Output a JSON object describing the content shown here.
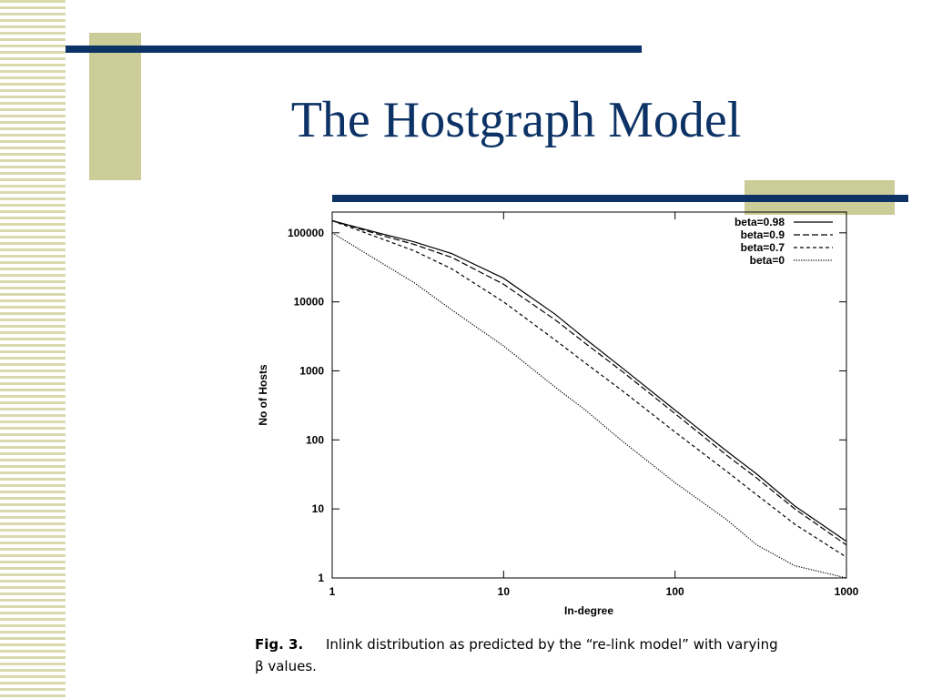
{
  "slide": {
    "title": "The Hostgraph Model",
    "caption_label": "Fig. 3.",
    "caption_text": "Inlink distribution as predicted by the “re-link model” with varying",
    "caption_text2": "β values."
  },
  "chart_data": {
    "type": "line",
    "x_label": "In-degree",
    "y_label": "No of Hosts",
    "xscale": "log",
    "yscale": "log",
    "x": [
      1,
      2,
      3,
      5,
      10,
      20,
      30,
      50,
      100,
      200,
      300,
      500,
      1000
    ],
    "series": [
      {
        "name": "beta=0.98",
        "color": "#000000",
        "style": "solid",
        "values": [
          150000,
          95000,
          74000,
          50000,
          22000,
          6600,
          2900,
          1070,
          270,
          69,
          32,
          11,
          3.4
        ]
      },
      {
        "name": "beta=0.9",
        "color": "#000000",
        "style": "dashed",
        "values": [
          150000,
          90000,
          68000,
          44000,
          18000,
          5500,
          2500,
          950,
          240,
          60,
          28,
          10,
          3
        ]
      },
      {
        "name": "beta=0.7",
        "color": "#000000",
        "style": "short-dashed",
        "values": [
          150000,
          80000,
          55000,
          30000,
          10000,
          2800,
          1300,
          500,
          130,
          35,
          16,
          6,
          2
        ]
      },
      {
        "name": "beta=0",
        "color": "#000000",
        "style": "dotted",
        "values": [
          100000,
          35000,
          19000,
          7600,
          2300,
          580,
          270,
          93,
          24,
          7,
          3,
          1.5,
          1
        ]
      }
    ],
    "xlim": [
      1,
      1000
    ],
    "xticks": [
      1,
      10,
      100,
      1000
    ],
    "ylim": [
      1,
      200000
    ],
    "yticks": [
      1,
      10,
      100,
      1000,
      10000,
      100000
    ],
    "legend": "top-right",
    "grid": false
  }
}
